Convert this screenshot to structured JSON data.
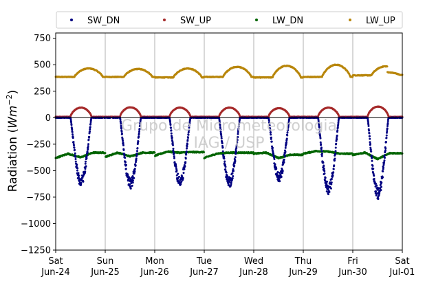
{
  "chart_data": {
    "type": "scatter",
    "ylabel_main": "Radiation (",
    "ylabel_math": "Wm",
    "ylabel_exp": "−2",
    "ylabel_close": ")",
    "ylim": [
      -1250,
      800
    ],
    "yticks": [
      -1250,
      -1000,
      -750,
      -500,
      -250,
      0,
      250,
      500,
      750
    ],
    "ytick_labels": [
      "−1250",
      "−1000",
      "−750",
      "−500",
      "−250",
      "0",
      "250",
      "500",
      "750"
    ],
    "x_days": [
      "2023-06-24",
      "2023-06-25",
      "2023-06-26",
      "2023-06-27",
      "2023-06-28",
      "2023-06-29",
      "2023-06-30",
      "2023-07-01"
    ],
    "xtick_labels": [
      [
        "Sat",
        "Jun-24"
      ],
      [
        "Sun",
        "Jun-25"
      ],
      [
        "Mon",
        "Jun-26"
      ],
      [
        "Tue",
        "Jun-27"
      ],
      [
        "Wed",
        "Jun-28"
      ],
      [
        "Thu",
        "Jun-29"
      ],
      [
        "Fri",
        "Jun-30"
      ],
      [
        "Sat",
        "Jul-01"
      ]
    ],
    "grid": "vertical",
    "zero_line": true,
    "legend_placement": "top",
    "watermark": [
      "Grupo de Micrometeorologia",
      "IAG / USP"
    ],
    "series": [
      {
        "name": "SW_DN",
        "color": "#000080",
        "daily_min": [
          -650,
          -670,
          -655,
          -660,
          -610,
          -730,
          -770
        ],
        "night_value": 0
      },
      {
        "name": "SW_UP",
        "color": "#a52a2a",
        "daily_max": [
          95,
          98,
          95,
          95,
          90,
          95,
          105
        ],
        "night_value": 8
      },
      {
        "name": "LW_DN",
        "color": "#006400",
        "daily_values": [
          [
            -380,
            -340,
            -375,
            -330
          ],
          [
            -370,
            -330,
            -365,
            -330
          ],
          [
            -360,
            -320,
            -330,
            -325
          ],
          [
            -380,
            -340,
            -330,
            -330
          ],
          [
            -340,
            -330,
            -380,
            -350
          ],
          [
            -340,
            -315,
            -320,
            -340
          ],
          [
            -350,
            -330,
            -390,
            -335
          ]
        ]
      },
      {
        "name": "LW_UP",
        "color": "#b8860b",
        "daily_min": [
          385,
          385,
          380,
          385,
          380,
          385,
          400
        ],
        "daily_max": [
          465,
          460,
          465,
          480,
          490,
          500,
          485
        ],
        "end_value": 405
      }
    ]
  }
}
